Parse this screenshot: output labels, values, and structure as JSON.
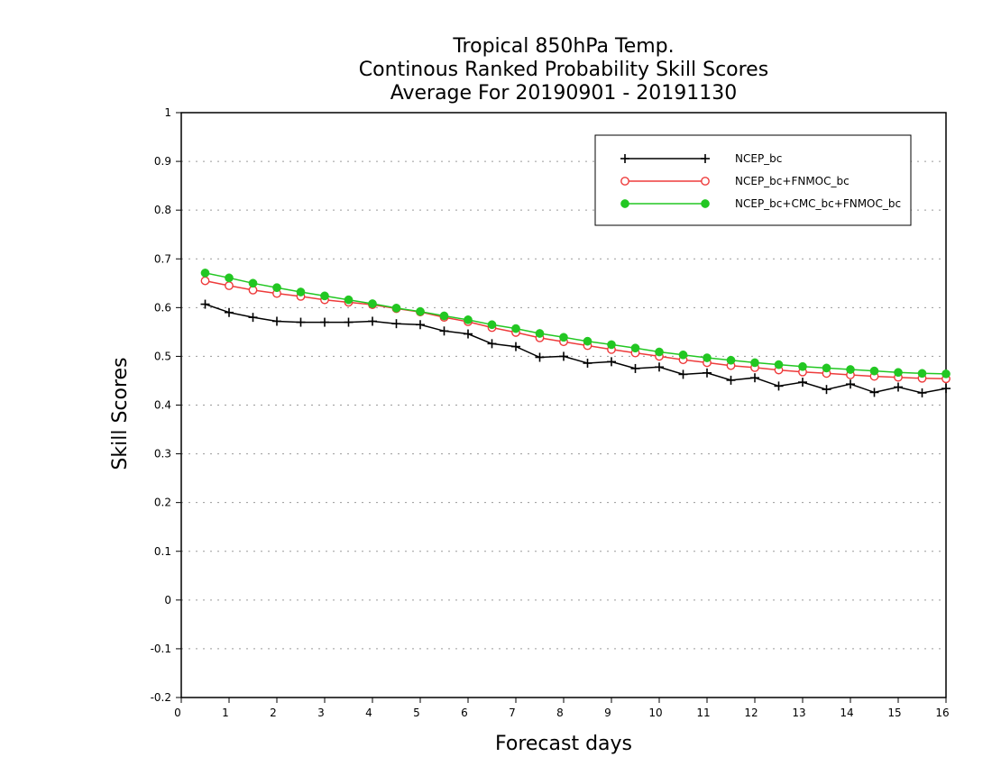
{
  "chart_data": {
    "type": "line",
    "title_lines": [
      "Tropical 850hPa Temp.",
      "Continous Ranked Probability Skill Scores",
      "Average For 20190901 - 20191130"
    ],
    "xlabel": "Forecast days",
    "ylabel": "Skill Scores",
    "xlim": [
      0,
      16
    ],
    "ylim": [
      -0.2,
      1
    ],
    "xticks": [
      "0",
      "1",
      "2",
      "3",
      "4",
      "5",
      "6",
      "7",
      "8",
      "9",
      "10",
      "11",
      "12",
      "13",
      "14",
      "15",
      "16"
    ],
    "yticks": [
      "-0.2",
      "-0.1",
      "0",
      "0.1",
      "0.2",
      "0.3",
      "0.4",
      "0.5",
      "0.6",
      "0.7",
      "0.8",
      "0.9",
      "1"
    ],
    "grid": "horizontal-dotted",
    "legend_position": "top-right",
    "x": [
      0.5,
      1,
      1.5,
      2,
      2.5,
      3,
      3.5,
      4,
      4.5,
      5,
      5.5,
      6,
      6.5,
      7,
      7.5,
      8,
      8.5,
      9,
      9.5,
      10,
      10.5,
      11,
      11.5,
      12,
      12.5,
      13,
      13.5,
      14,
      14.5,
      15,
      15.5,
      16
    ],
    "series": [
      {
        "name": "NCEP_bc",
        "color": "#000000",
        "marker": "plus",
        "values": [
          0.607,
          0.59,
          0.58,
          0.572,
          0.57,
          0.57,
          0.57,
          0.572,
          0.567,
          0.565,
          0.552,
          0.546,
          0.526,
          0.52,
          0.498,
          0.5,
          0.486,
          0.489,
          0.475,
          0.478,
          0.463,
          0.466,
          0.451,
          0.456,
          0.439,
          0.447,
          0.432,
          0.443,
          0.426,
          0.437,
          0.425,
          0.434
        ]
      },
      {
        "name": "NCEP_bc+FNMOC_bc",
        "color": "#ee3b3b",
        "marker": "open-circle",
        "values": [
          0.655,
          0.645,
          0.636,
          0.629,
          0.623,
          0.616,
          0.611,
          0.606,
          0.598,
          0.591,
          0.58,
          0.571,
          0.559,
          0.549,
          0.538,
          0.53,
          0.522,
          0.514,
          0.507,
          0.5,
          0.493,
          0.487,
          0.481,
          0.477,
          0.472,
          0.468,
          0.465,
          0.462,
          0.459,
          0.457,
          0.455,
          0.454
        ]
      },
      {
        "name": "NCEP_bc+CMC_bc+FNMOC_bc",
        "color": "#22c722",
        "marker": "filled-circle",
        "values": [
          0.671,
          0.661,
          0.65,
          0.641,
          0.632,
          0.624,
          0.616,
          0.608,
          0.599,
          0.592,
          0.583,
          0.575,
          0.565,
          0.557,
          0.547,
          0.539,
          0.531,
          0.524,
          0.517,
          0.509,
          0.503,
          0.497,
          0.492,
          0.487,
          0.483,
          0.479,
          0.476,
          0.473,
          0.47,
          0.467,
          0.465,
          0.464
        ]
      }
    ]
  }
}
